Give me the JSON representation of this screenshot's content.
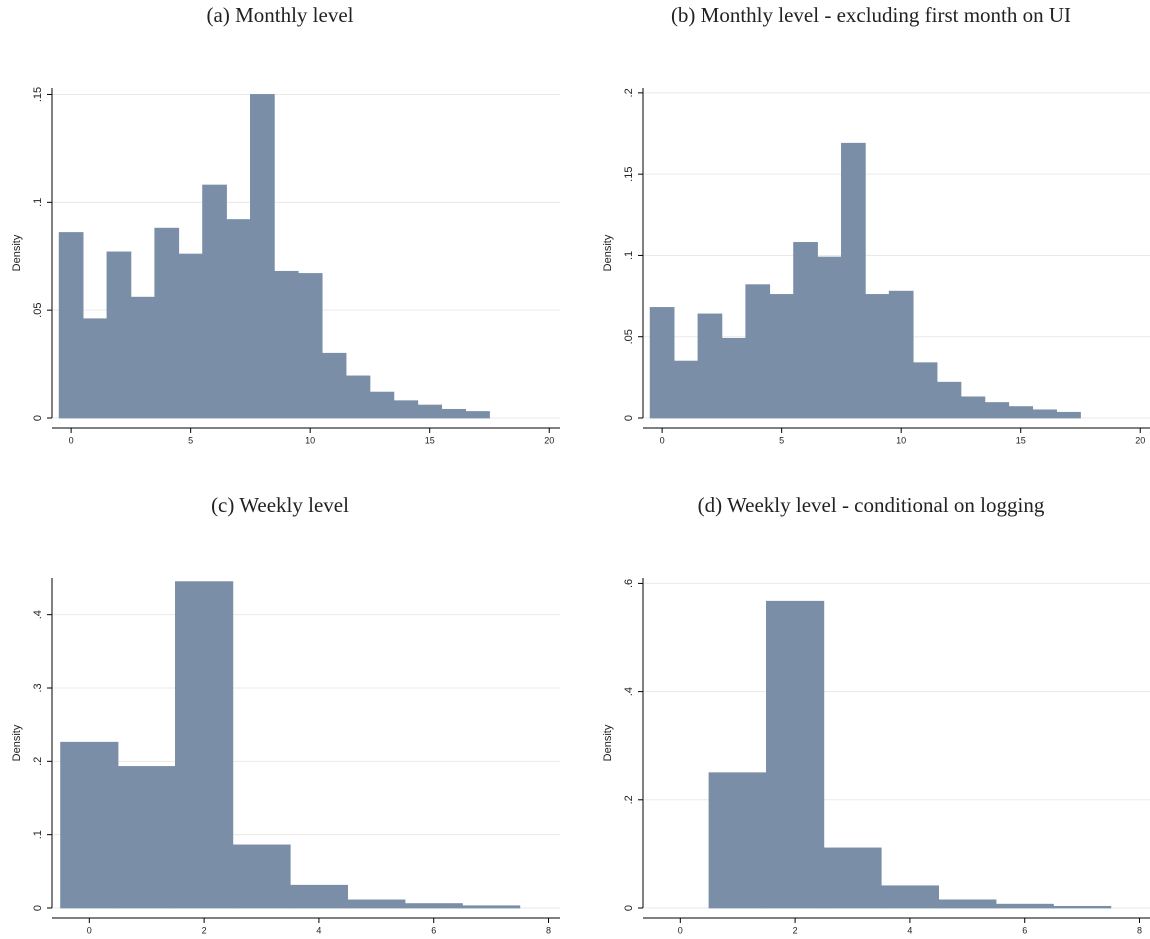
{
  "chart_data": [
    {
      "type": "histogram",
      "title": "(a) Monthly level",
      "y_label": "Density",
      "bins": [
        -0.5,
        0.5,
        1.5,
        2.5,
        3.5,
        4.5,
        5.5,
        6.5,
        7.5,
        8.5,
        9.5,
        10.5,
        11.5,
        12.5,
        13.5,
        14.5,
        15.5,
        16.5,
        17.5
      ],
      "values": [
        0.086,
        0.046,
        0.077,
        0.056,
        0.088,
        0.076,
        0.108,
        0.092,
        0.15,
        0.068,
        0.067,
        0.03,
        0.0195,
        0.012,
        0.008,
        0.006,
        0.004,
        0.003
      ],
      "color": "#7a8fa7",
      "xlim": [
        -0.8,
        20.45
      ],
      "ylim": [
        0,
        0.153
      ],
      "xticks": [
        0,
        5,
        10,
        15,
        20
      ],
      "yticks": [
        0,
        {
          "value": 0.05,
          "label": ".05"
        },
        {
          "value": 0.1,
          "label": ".1"
        },
        {
          "value": 0.15,
          "label": ".15"
        }
      ],
      "grid": true
    },
    {
      "type": "histogram",
      "title": "(b) Monthly level - excluding first month on UI",
      "y_label": "Density",
      "bins": [
        -0.5,
        0.5,
        1.5,
        2.5,
        3.5,
        4.5,
        5.5,
        6.5,
        7.5,
        8.5,
        9.5,
        10.5,
        11.5,
        12.5,
        13.5,
        14.5,
        15.5,
        16.5,
        17.5
      ],
      "values": [
        0.068,
        0.035,
        0.064,
        0.049,
        0.082,
        0.076,
        0.108,
        0.099,
        0.169,
        0.076,
        0.078,
        0.034,
        0.022,
        0.013,
        0.0095,
        0.007,
        0.005,
        0.0035
      ],
      "color": "#7a8fa7",
      "xlim": [
        -0.8,
        20.45
      ],
      "ylim": [
        0,
        0.203
      ],
      "xticks": [
        0,
        5,
        10,
        15,
        20
      ],
      "yticks": [
        0,
        {
          "value": 0.05,
          "label": ".05"
        },
        {
          "value": 0.1,
          "label": ".1"
        },
        {
          "value": 0.15,
          "label": ".15"
        },
        {
          "value": 0.2,
          "label": ".2"
        }
      ],
      "grid": true
    },
    {
      "type": "histogram",
      "title": "(c) Weekly level",
      "y_label": "Density",
      "bins": [
        -0.5,
        0.5,
        1.5,
        2.5,
        3.5,
        4.5,
        5.5,
        6.5,
        7.5
      ],
      "values": [
        0.226,
        0.193,
        0.445,
        0.086,
        0.031,
        0.011,
        0.006,
        0.003
      ],
      "color": "#7a8fa7",
      "xlim": [
        -0.65,
        8.2
      ],
      "ylim": [
        0,
        0.45
      ],
      "xticks": [
        0,
        2,
        4,
        6,
        8
      ],
      "yticks": [
        0,
        {
          "value": 0.1,
          "label": ".1"
        },
        {
          "value": 0.2,
          "label": ".2"
        },
        {
          "value": 0.3,
          "label": ".3"
        },
        {
          "value": 0.4,
          "label": ".4"
        }
      ],
      "grid": true
    },
    {
      "type": "histogram",
      "title": "(d) Weekly level - conditional on logging",
      "y_label": "Density",
      "bins": [
        0.5,
        1.5,
        2.5,
        3.5,
        4.5,
        5.5,
        6.5,
        7.5
      ],
      "values": [
        0.25,
        0.567,
        0.111,
        0.041,
        0.015,
        0.007,
        0.003
      ],
      "color": "#7a8fa7",
      "xlim": [
        -0.65,
        8.2
      ],
      "ylim": [
        0,
        0.61
      ],
      "xticks": [
        0,
        2,
        4,
        6,
        8
      ],
      "yticks": [
        0,
        {
          "value": 0.2,
          "label": ".2"
        },
        {
          "value": 0.4,
          "label": ".4"
        },
        {
          "value": 0.6,
          "label": ".6"
        }
      ],
      "grid": true
    }
  ]
}
